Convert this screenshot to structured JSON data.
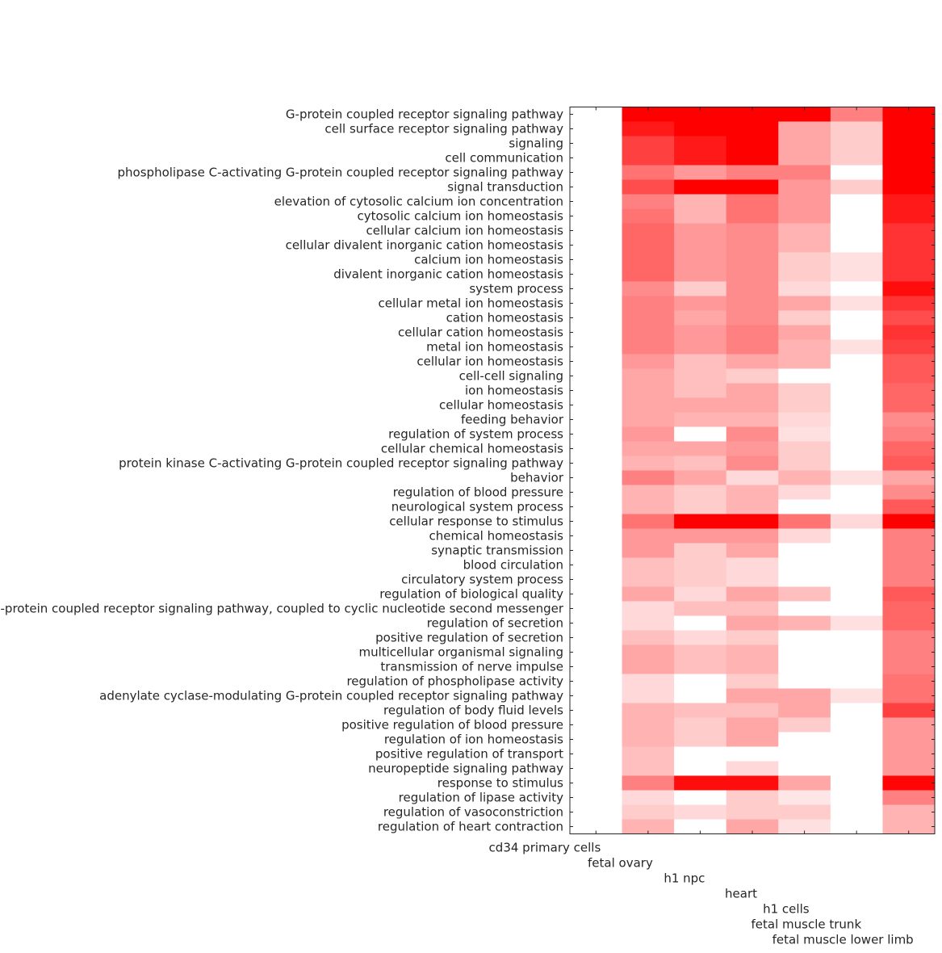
{
  "chart_data": {
    "type": "heatmap",
    "title": "",
    "xlabel": "",
    "ylabel": "",
    "color_scale": {
      "low": "#ffffff",
      "high": "#ff0000",
      "range": [
        0,
        1
      ]
    },
    "columns": [
      "cd34 primary cells",
      "fetal ovary",
      "h1 npc",
      "heart",
      "h1 cells",
      "fetal muscle trunk",
      "fetal muscle lower limb"
    ],
    "rows": [
      "G-protein coupled receptor signaling pathway",
      "cell surface receptor signaling pathway",
      "signaling",
      "cell communication",
      "phospholipase C-activating G-protein coupled receptor signaling pathway",
      "signal transduction",
      "elevation of cytosolic calcium ion concentration",
      "cytosolic calcium ion homeostasis",
      "cellular calcium ion homeostasis",
      "cellular divalent inorganic cation homeostasis",
      "calcium ion homeostasis",
      "divalent inorganic cation homeostasis",
      "system process",
      "cellular metal ion homeostasis",
      "cation homeostasis",
      "cellular cation homeostasis",
      "metal ion homeostasis",
      "cellular ion homeostasis",
      "cell-cell signaling",
      "ion homeostasis",
      "cellular homeostasis",
      "feeding behavior",
      "regulation of system process",
      "cellular chemical homeostasis",
      "protein kinase C-activating G-protein coupled receptor signaling pathway",
      "behavior",
      "regulation of blood pressure",
      "neurological system process",
      "cellular response to stimulus",
      "chemical homeostasis",
      "synaptic transmission",
      "blood circulation",
      "circulatory system process",
      "regulation of biological quality",
      "G-protein coupled receptor signaling pathway, coupled to cyclic nucleotide second messenger",
      "regulation of secretion",
      "positive regulation of secretion",
      "multicellular organismal signaling",
      "transmission of nerve impulse",
      "regulation of phospholipase activity",
      "adenylate cyclase-modulating G-protein coupled receptor signaling pathway",
      "regulation of body fluid levels",
      "positive regulation of blood pressure",
      "regulation of ion homeostasis",
      "positive regulation of transport",
      "neuropeptide signaling pathway",
      "response to stimulus",
      "regulation of lipase activity",
      "regulation of vasoconstriction",
      "regulation of heart contraction"
    ],
    "values": [
      [
        0,
        1.0,
        1.0,
        1.0,
        1.0,
        0.5,
        1.0
      ],
      [
        0,
        0.9,
        1.0,
        1.0,
        0.35,
        0.2,
        1.0
      ],
      [
        0,
        0.75,
        0.9,
        1.0,
        0.35,
        0.2,
        1.0
      ],
      [
        0,
        0.75,
        0.9,
        1.0,
        0.35,
        0.2,
        1.0
      ],
      [
        0,
        0.55,
        0.4,
        0.5,
        0.5,
        0,
        1.0
      ],
      [
        0,
        0.7,
        1.0,
        1.0,
        0.4,
        0.2,
        1.0
      ],
      [
        0,
        0.5,
        0.3,
        0.55,
        0.4,
        0,
        0.9
      ],
      [
        0,
        0.55,
        0.3,
        0.55,
        0.4,
        0,
        0.9
      ],
      [
        0,
        0.6,
        0.4,
        0.45,
        0.3,
        0,
        0.8
      ],
      [
        0,
        0.6,
        0.4,
        0.45,
        0.3,
        0,
        0.8
      ],
      [
        0,
        0.6,
        0.4,
        0.45,
        0.2,
        0.12,
        0.8
      ],
      [
        0,
        0.6,
        0.4,
        0.45,
        0.2,
        0.12,
        0.8
      ],
      [
        0,
        0.45,
        0.2,
        0.45,
        0.15,
        0,
        0.95
      ],
      [
        0,
        0.5,
        0.4,
        0.45,
        0.35,
        0.12,
        0.8
      ],
      [
        0,
        0.5,
        0.35,
        0.45,
        0.2,
        0,
        0.7
      ],
      [
        0,
        0.5,
        0.4,
        0.5,
        0.35,
        0,
        0.8
      ],
      [
        0,
        0.5,
        0.4,
        0.5,
        0.3,
        0.12,
        0.75
      ],
      [
        0,
        0.4,
        0.25,
        0.35,
        0.3,
        0,
        0.65
      ],
      [
        0,
        0.35,
        0.25,
        0.2,
        0,
        0,
        0.65
      ],
      [
        0,
        0.35,
        0.25,
        0.35,
        0.2,
        0,
        0.6
      ],
      [
        0,
        0.35,
        0.35,
        0.35,
        0.2,
        0,
        0.6
      ],
      [
        0,
        0.35,
        0.3,
        0.3,
        0.15,
        0,
        0.45
      ],
      [
        0,
        0.4,
        0,
        0.45,
        0.12,
        0,
        0.5
      ],
      [
        0,
        0.35,
        0.35,
        0.4,
        0.2,
        0,
        0.6
      ],
      [
        0,
        0.3,
        0.25,
        0.45,
        0.2,
        0,
        0.65
      ],
      [
        0,
        0.5,
        0.35,
        0.15,
        0.3,
        0.12,
        0.35
      ],
      [
        0,
        0.3,
        0.2,
        0.3,
        0.15,
        0,
        0.45
      ],
      [
        0,
        0.3,
        0.2,
        0.3,
        0,
        0,
        0.65
      ],
      [
        0,
        0.55,
        1.0,
        1.0,
        0.55,
        0.15,
        1.0
      ],
      [
        0,
        0.4,
        0.4,
        0.4,
        0.15,
        0,
        0.5
      ],
      [
        0,
        0.4,
        0.2,
        0.35,
        0,
        0,
        0.5
      ],
      [
        0,
        0.25,
        0.2,
        0.15,
        0,
        0,
        0.5
      ],
      [
        0,
        0.25,
        0.2,
        0.15,
        0,
        0,
        0.5
      ],
      [
        0,
        0.35,
        0.15,
        0.35,
        0.25,
        0,
        0.65
      ],
      [
        0,
        0.15,
        0.25,
        0.25,
        0,
        0,
        0.6
      ],
      [
        0,
        0.15,
        0,
        0.35,
        0.3,
        0.12,
        0.6
      ],
      [
        0,
        0.25,
        0.15,
        0.2,
        0,
        0,
        0.5
      ],
      [
        0,
        0.35,
        0.25,
        0.3,
        0,
        0,
        0.5
      ],
      [
        0,
        0.35,
        0.25,
        0.3,
        0,
        0,
        0.5
      ],
      [
        0,
        0.15,
        0,
        0.2,
        0,
        0,
        0.55
      ],
      [
        0,
        0.15,
        0,
        0.35,
        0.35,
        0.12,
        0.55
      ],
      [
        0,
        0.3,
        0.25,
        0.25,
        0.35,
        0,
        0.75
      ],
      [
        0,
        0.3,
        0.2,
        0.35,
        0.2,
        0,
        0.4
      ],
      [
        0,
        0.3,
        0.2,
        0.35,
        0,
        0,
        0.4
      ],
      [
        0,
        0.25,
        0,
        0,
        0,
        0,
        0.4
      ],
      [
        0,
        0.25,
        0,
        0.15,
        0,
        0,
        0.4
      ],
      [
        0,
        0.5,
        0.95,
        0.95,
        0.35,
        0,
        0.98
      ],
      [
        0,
        0.15,
        0,
        0.2,
        0.1,
        0,
        0.5
      ],
      [
        0,
        0.2,
        0.15,
        0.2,
        0.2,
        0,
        0.3
      ],
      [
        0,
        0.3,
        0,
        0.35,
        0.12,
        0,
        0.3
      ]
    ]
  }
}
